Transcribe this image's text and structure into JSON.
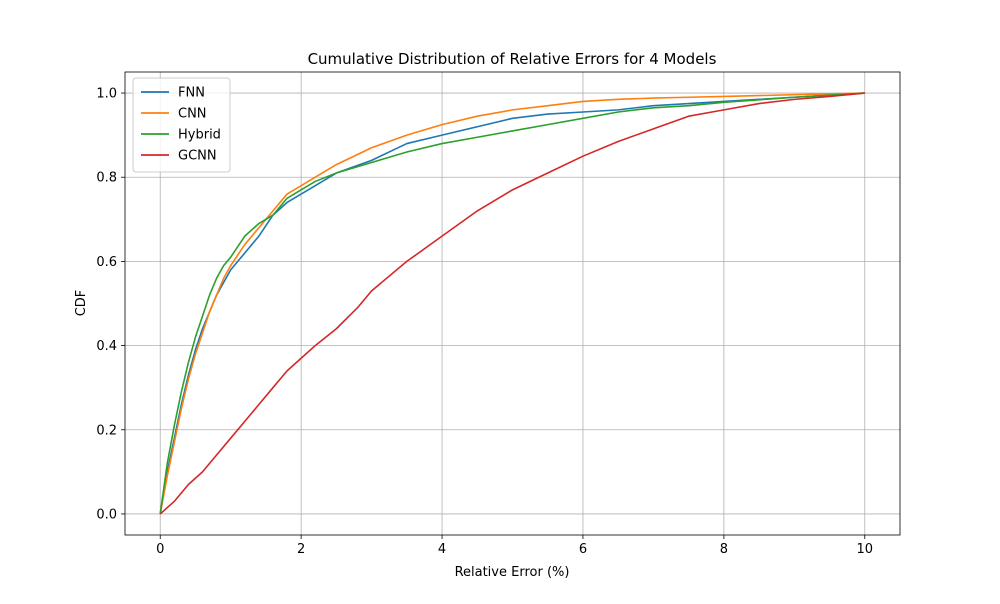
{
  "chart_data": {
    "type": "line",
    "title": "Cumulative Distribution of Relative Errors for 4 Models",
    "xlabel": "Relative Error (%)",
    "ylabel": "CDF",
    "xlim": [
      -0.5,
      10.5
    ],
    "ylim": [
      -0.05,
      1.05
    ],
    "xticks": [
      0,
      2,
      4,
      6,
      8,
      10
    ],
    "yticks": [
      0.0,
      0.2,
      0.4,
      0.6,
      0.8,
      1.0
    ],
    "xtick_labels": [
      "0",
      "2",
      "4",
      "6",
      "8",
      "10"
    ],
    "ytick_labels": [
      "0.0",
      "0.2",
      "0.4",
      "0.6",
      "0.8",
      "1.0"
    ],
    "grid": true,
    "legend_position": "upper-left",
    "series": [
      {
        "name": "FNN",
        "color": "#1f77b4",
        "points": [
          [
            0,
            0
          ],
          [
            0.1,
            0.1
          ],
          [
            0.2,
            0.18
          ],
          [
            0.3,
            0.26
          ],
          [
            0.4,
            0.33
          ],
          [
            0.5,
            0.39
          ],
          [
            0.6,
            0.44
          ],
          [
            0.7,
            0.48
          ],
          [
            0.8,
            0.52
          ],
          [
            0.9,
            0.55
          ],
          [
            1.0,
            0.58
          ],
          [
            1.2,
            0.62
          ],
          [
            1.4,
            0.66
          ],
          [
            1.6,
            0.71
          ],
          [
            1.8,
            0.74
          ],
          [
            2.0,
            0.76
          ],
          [
            2.2,
            0.78
          ],
          [
            2.5,
            0.81
          ],
          [
            3.0,
            0.84
          ],
          [
            3.5,
            0.88
          ],
          [
            4.0,
            0.9
          ],
          [
            4.5,
            0.92
          ],
          [
            5.0,
            0.94
          ],
          [
            5.5,
            0.95
          ],
          [
            6.0,
            0.955
          ],
          [
            6.5,
            0.96
          ],
          [
            7.0,
            0.97
          ],
          [
            7.5,
            0.975
          ],
          [
            8.0,
            0.98
          ],
          [
            8.5,
            0.985
          ],
          [
            9.0,
            0.99
          ],
          [
            9.5,
            0.995
          ],
          [
            10.0,
            1.0
          ]
        ]
      },
      {
        "name": "CNN",
        "color": "#ff7f0e",
        "points": [
          [
            0,
            0
          ],
          [
            0.1,
            0.09
          ],
          [
            0.2,
            0.17
          ],
          [
            0.3,
            0.25
          ],
          [
            0.4,
            0.32
          ],
          [
            0.5,
            0.38
          ],
          [
            0.6,
            0.43
          ],
          [
            0.7,
            0.48
          ],
          [
            0.8,
            0.52
          ],
          [
            0.9,
            0.56
          ],
          [
            1.0,
            0.59
          ],
          [
            1.2,
            0.64
          ],
          [
            1.4,
            0.68
          ],
          [
            1.6,
            0.72
          ],
          [
            1.8,
            0.76
          ],
          [
            2.0,
            0.78
          ],
          [
            2.2,
            0.8
          ],
          [
            2.5,
            0.83
          ],
          [
            3.0,
            0.87
          ],
          [
            3.5,
            0.9
          ],
          [
            4.0,
            0.925
          ],
          [
            4.5,
            0.945
          ],
          [
            5.0,
            0.96
          ],
          [
            5.5,
            0.97
          ],
          [
            6.0,
            0.98
          ],
          [
            6.5,
            0.985
          ],
          [
            7.0,
            0.988
          ],
          [
            7.5,
            0.99
          ],
          [
            8.0,
            0.992
          ],
          [
            8.5,
            0.994
          ],
          [
            9.0,
            0.996
          ],
          [
            9.5,
            0.998
          ],
          [
            10.0,
            1.0
          ]
        ]
      },
      {
        "name": "Hybrid",
        "color": "#2ca02c",
        "points": [
          [
            0,
            0
          ],
          [
            0.1,
            0.12
          ],
          [
            0.2,
            0.21
          ],
          [
            0.3,
            0.29
          ],
          [
            0.4,
            0.36
          ],
          [
            0.5,
            0.42
          ],
          [
            0.6,
            0.47
          ],
          [
            0.7,
            0.52
          ],
          [
            0.8,
            0.56
          ],
          [
            0.9,
            0.59
          ],
          [
            1.0,
            0.61
          ],
          [
            1.2,
            0.66
          ],
          [
            1.4,
            0.69
          ],
          [
            1.6,
            0.71
          ],
          [
            1.8,
            0.75
          ],
          [
            2.0,
            0.77
          ],
          [
            2.2,
            0.79
          ],
          [
            2.5,
            0.81
          ],
          [
            3.0,
            0.835
          ],
          [
            3.5,
            0.86
          ],
          [
            4.0,
            0.88
          ],
          [
            4.5,
            0.895
          ],
          [
            5.0,
            0.91
          ],
          [
            5.5,
            0.925
          ],
          [
            6.0,
            0.94
          ],
          [
            6.5,
            0.955
          ],
          [
            7.0,
            0.965
          ],
          [
            7.5,
            0.97
          ],
          [
            8.0,
            0.978
          ],
          [
            8.5,
            0.984
          ],
          [
            9.0,
            0.99
          ],
          [
            9.5,
            0.995
          ],
          [
            10.0,
            1.0
          ]
        ]
      },
      {
        "name": "GCNN",
        "color": "#d62728",
        "points": [
          [
            0,
            0
          ],
          [
            0.2,
            0.03
          ],
          [
            0.4,
            0.07
          ],
          [
            0.6,
            0.1
          ],
          [
            0.8,
            0.14
          ],
          [
            1.0,
            0.18
          ],
          [
            1.2,
            0.22
          ],
          [
            1.4,
            0.26
          ],
          [
            1.6,
            0.3
          ],
          [
            1.8,
            0.34
          ],
          [
            2.0,
            0.37
          ],
          [
            2.2,
            0.4
          ],
          [
            2.5,
            0.44
          ],
          [
            2.8,
            0.49
          ],
          [
            3.0,
            0.53
          ],
          [
            3.5,
            0.6
          ],
          [
            4.0,
            0.66
          ],
          [
            4.5,
            0.72
          ],
          [
            5.0,
            0.77
          ],
          [
            5.5,
            0.81
          ],
          [
            6.0,
            0.85
          ],
          [
            6.5,
            0.885
          ],
          [
            7.0,
            0.915
          ],
          [
            7.5,
            0.945
          ],
          [
            8.0,
            0.96
          ],
          [
            8.5,
            0.975
          ],
          [
            9.0,
            0.985
          ],
          [
            9.5,
            0.992
          ],
          [
            10.0,
            1.0
          ]
        ]
      }
    ]
  }
}
